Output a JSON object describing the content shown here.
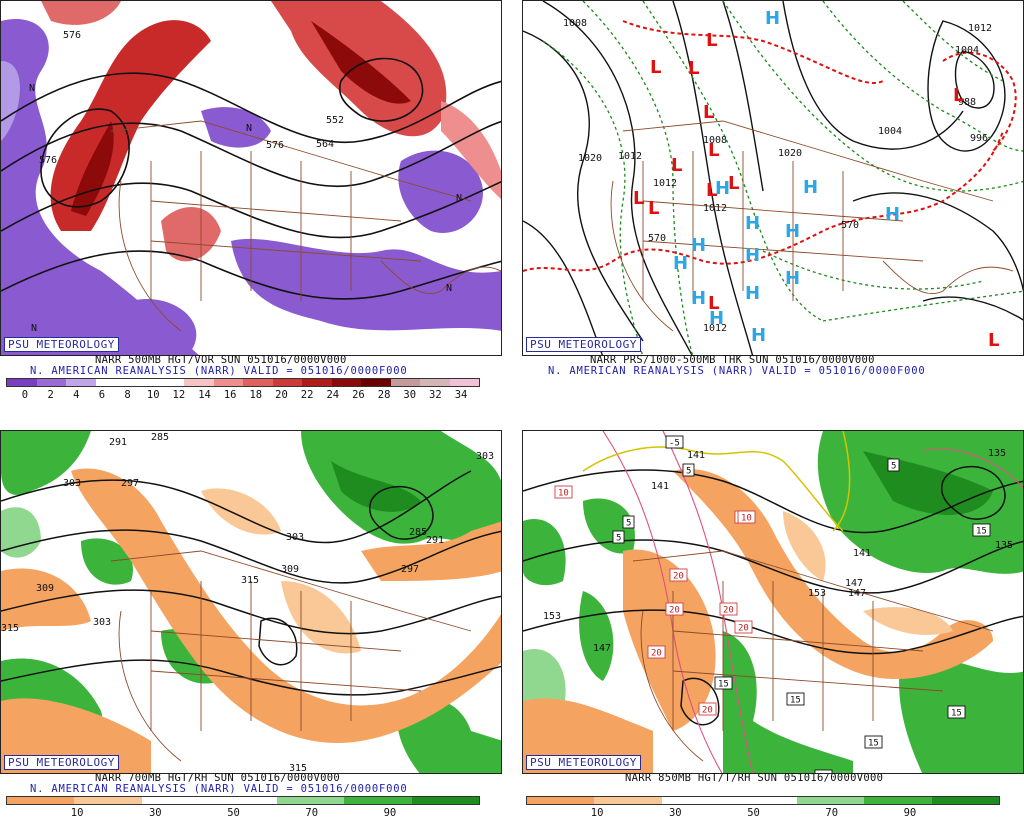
{
  "panels": {
    "p1": {
      "badge": "PSU METEOROLOGY",
      "line1": "NARR 500MB HGT/VOR SUN 051016/0000V000",
      "line2": "N. AMERICAN REANALYSIS (NARR) VALID = 051016/0000F000",
      "map_labels": [
        "576",
        "576",
        "552",
        "576",
        "564",
        "N",
        "N",
        "N",
        "N",
        "N"
      ],
      "colorbar": {
        "colors": [
          "#7a3fc0",
          "#9a6ad6",
          "#c0a6e8",
          "#ffffff",
          "#ffffff",
          "#ffffff",
          "#f6c4c4",
          "#ee8e8e",
          "#e06060",
          "#cc3a3a",
          "#b01c1c",
          "#8c0a0a",
          "#6a0000",
          "#c59a9a",
          "#d5b6b6",
          "#f2c0d8"
        ],
        "ticks": [
          "0",
          "2",
          "4",
          "6",
          "8",
          "10",
          "12",
          "14",
          "16",
          "18",
          "20",
          "22",
          "24",
          "26",
          "28",
          "30",
          "32",
          "34"
        ]
      }
    },
    "p2": {
      "badge": "PSU METEOROLOGY",
      "line1": "NARR PRS/1000-500MB THK SUN 051016/0000V000",
      "line2": "N. AMERICAN REANALYSIS (NARR) VALID = 051016/0000F000",
      "map_labels": [
        "1008",
        "1012",
        "1004",
        "988",
        "996",
        "1004",
        "1020",
        "1012",
        "1008",
        "1020",
        "1012",
        "1012",
        "1012",
        "570",
        "570"
      ],
      "h_label": "H",
      "l_label": "L",
      "h_color": "#2aa7e6",
      "l_color": "#e01010"
    },
    "p3": {
      "badge": "PSU METEOROLOGY",
      "line1": "NARR 700MB HGT/RH SUN 051016/0000V000",
      "line2": "N. AMERICAN REANALYSIS (NARR) VALID = 051016/0000F000",
      "map_labels": [
        "291",
        "285",
        "303",
        "297",
        "309",
        "303",
        "315",
        "303",
        "315",
        "309",
        "297",
        "291",
        "285",
        "303",
        "315"
      ],
      "colorbar": {
        "colors": [
          "#f4a460",
          "#f9c896",
          "#ffffff",
          "#ffffff",
          "#90d890",
          "#3cb43c",
          "#1e8c1e"
        ],
        "ticks": [
          "10",
          "30",
          "50",
          "70",
          "90"
        ]
      }
    },
    "p4": {
      "badge": "PSU METEOROLOGY",
      "line1": "NARR 850MB HGT/T/RH SUN 051016/0000V000",
      "line2": "",
      "map_labels": [
        "135",
        "141",
        "147",
        "153",
        "147",
        "141",
        "135",
        "153",
        "147",
        "141"
      ],
      "box_labels": [
        "-5",
        "10",
        "5",
        "5",
        "5",
        "10",
        "20",
        "20",
        "20",
        "20",
        "20",
        "20",
        "15",
        "15",
        "15",
        "15",
        "15",
        "5",
        "15",
        "10"
      ],
      "colorbar": {
        "colors": [
          "#f4a460",
          "#f9c896",
          "#ffffff",
          "#ffffff",
          "#90d890",
          "#3cb43c",
          "#1e8c1e"
        ],
        "ticks": [
          "10",
          "30",
          "50",
          "70",
          "90"
        ]
      }
    }
  }
}
